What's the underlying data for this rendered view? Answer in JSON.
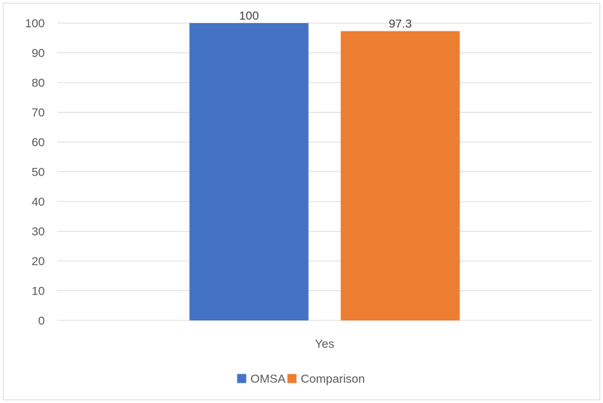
{
  "chart_data": {
    "type": "bar",
    "title": "",
    "xlabel": "",
    "ylabel": "",
    "categories": [
      "Yes"
    ],
    "series": [
      {
        "name": "OMSA",
        "values": [
          100
        ],
        "color": "#4472C4",
        "data_labels": [
          "100"
        ]
      },
      {
        "name": "Comparison",
        "values": [
          97.3
        ],
        "color": "#ED7D31",
        "data_labels": [
          "97.3"
        ]
      }
    ],
    "ylim": [
      0,
      100
    ],
    "yticks": [
      0,
      10,
      20,
      30,
      40,
      50,
      60,
      70,
      80,
      90,
      100
    ],
    "ytick_labels": [
      "0",
      "10",
      "20",
      "30",
      "40",
      "50",
      "60",
      "70",
      "80",
      "90",
      "100"
    ],
    "grid": true,
    "legend_position": "bottom",
    "gridline_color": "#d9d9d9"
  }
}
